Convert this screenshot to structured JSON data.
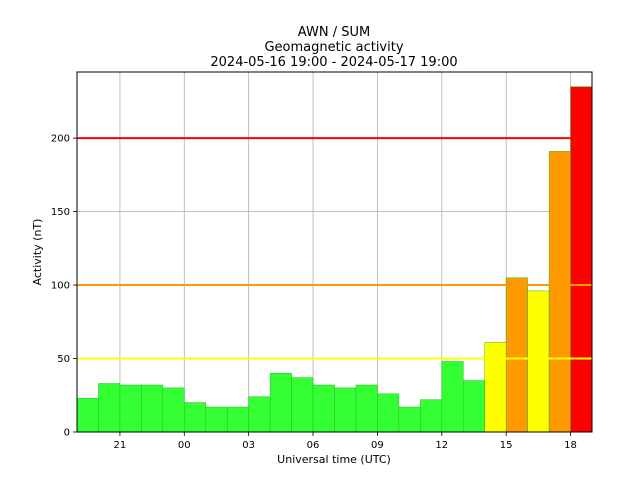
{
  "chart_data": {
    "type": "bar",
    "title_lines": [
      "AWN / SUM",
      "Geomagnetic activity",
      "2024-05-16 19:00 - 2024-05-17 19:00"
    ],
    "xlabel": "Universal time (UTC)",
    "ylabel": "Activity (nT)",
    "xlim": [
      19.0,
      43.0
    ],
    "ylim": [
      0,
      245
    ],
    "x_ticks": [
      {
        "x": 21,
        "label": "21"
      },
      {
        "x": 24,
        "label": "00"
      },
      {
        "x": 27,
        "label": "03"
      },
      {
        "x": 30,
        "label": "06"
      },
      {
        "x": 33,
        "label": "09"
      },
      {
        "x": 36,
        "label": "12"
      },
      {
        "x": 39,
        "label": "15"
      },
      {
        "x": 42,
        "label": "18"
      }
    ],
    "y_ticks": [
      0,
      50,
      100,
      150,
      200
    ],
    "grid": true,
    "thresholds": [
      {
        "value": 50,
        "color": "#ffff00"
      },
      {
        "value": 100,
        "color": "#ff9900"
      },
      {
        "value": 200,
        "color": "#ff0000"
      }
    ],
    "bars": [
      {
        "hour_start": 19,
        "value": 23,
        "color": "#33ff33"
      },
      {
        "hour_start": 20,
        "value": 33,
        "color": "#33ff33"
      },
      {
        "hour_start": 21,
        "value": 32,
        "color": "#33ff33"
      },
      {
        "hour_start": 22,
        "value": 32,
        "color": "#33ff33"
      },
      {
        "hour_start": 23,
        "value": 30,
        "color": "#33ff33"
      },
      {
        "hour_start": 24,
        "value": 20,
        "color": "#33ff33"
      },
      {
        "hour_start": 25,
        "value": 17,
        "color": "#33ff33"
      },
      {
        "hour_start": 26,
        "value": 17,
        "color": "#33ff33"
      },
      {
        "hour_start": 27,
        "value": 24,
        "color": "#33ff33"
      },
      {
        "hour_start": 28,
        "value": 40,
        "color": "#33ff33"
      },
      {
        "hour_start": 29,
        "value": 37,
        "color": "#33ff33"
      },
      {
        "hour_start": 30,
        "value": 32,
        "color": "#33ff33"
      },
      {
        "hour_start": 31,
        "value": 30,
        "color": "#33ff33"
      },
      {
        "hour_start": 32,
        "value": 32,
        "color": "#33ff33"
      },
      {
        "hour_start": 33,
        "value": 26,
        "color": "#33ff33"
      },
      {
        "hour_start": 34,
        "value": 17,
        "color": "#33ff33"
      },
      {
        "hour_start": 35,
        "value": 22,
        "color": "#33ff33"
      },
      {
        "hour_start": 36,
        "value": 48,
        "color": "#33ff33"
      },
      {
        "hour_start": 37,
        "value": 35,
        "color": "#33ff33"
      },
      {
        "hour_start": 38,
        "value": 61,
        "color": "#ffff00"
      },
      {
        "hour_start": 39,
        "value": 105,
        "color": "#ff9900"
      },
      {
        "hour_start": 40,
        "value": 96,
        "color": "#ffff00"
      },
      {
        "hour_start": 41,
        "value": 191,
        "color": "#ff9900"
      },
      {
        "hour_start": 42,
        "value": 235,
        "color": "#ff0000"
      }
    ]
  }
}
